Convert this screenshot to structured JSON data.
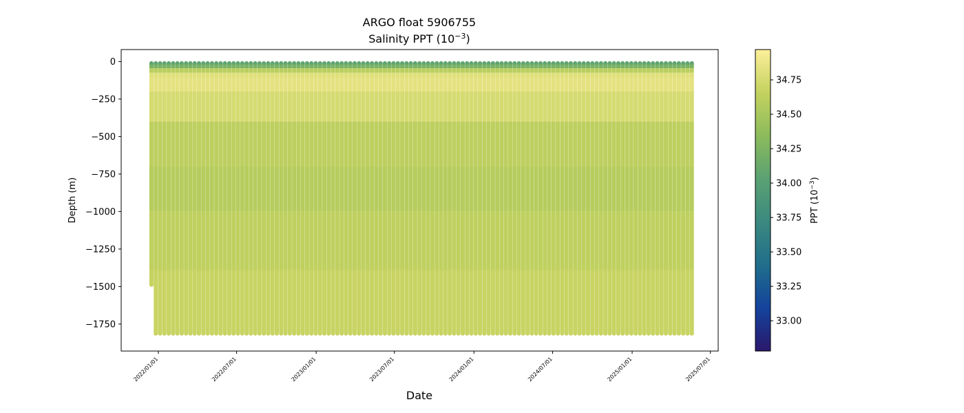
{
  "chart_data": {
    "type": "scatter",
    "title": "ARGO float 5906755",
    "subtitle_prefix": "Salinity PPT (10",
    "subtitle_exp": "−3",
    "subtitle_suffix": ")",
    "xlabel": "Date",
    "ylabel": "Depth (m)",
    "colorbar_label_prefix": "PPT (10",
    "colorbar_label_exp": "−3",
    "colorbar_label_suffix": ")",
    "colormap": "haline",
    "colormap_stops": [
      "#2a186c",
      "#14439c",
      "#206e8b",
      "#3b897f",
      "#5aa173",
      "#8cbb5c",
      "#c4d25f",
      "#fdef9a"
    ],
    "color_range": [
      32.78,
      34.97
    ],
    "xlim": [
      "2021-10-07",
      "2025-07-19"
    ],
    "ylim": [
      -1930,
      80
    ],
    "x_ticks": [
      "2022/01/01",
      "2022/07/01",
      "2023/01/01",
      "2023/07/01",
      "2024/01/01",
      "2024/07/01",
      "2025/01/01",
      "2025/07/01"
    ],
    "x_tick_dates": [
      "2022-01-01",
      "2022-07-01",
      "2023-01-01",
      "2023-07-01",
      "2024-01-01",
      "2024-07-01",
      "2025-01-01",
      "2025-07-01"
    ],
    "y_ticks": [
      0,
      -250,
      -500,
      -750,
      -1000,
      -1250,
      -1500,
      -1750
    ],
    "y_tick_labels": [
      "0",
      "−250",
      "−500",
      "−750",
      "−1000",
      "−1250",
      "−1500",
      "−1750"
    ],
    "colorbar_ticks": [
      33.0,
      33.25,
      33.5,
      33.75,
      34.0,
      34.25,
      34.5,
      34.75
    ],
    "colorbar_tick_labels": [
      "33.00",
      "33.25",
      "33.50",
      "33.75",
      "34.00",
      "34.25",
      "34.50",
      "34.75"
    ],
    "profiles": {
      "first_date": "2021-12-16",
      "last_date": "2025-05-20",
      "interval_days": 10,
      "first_profile_max_depth": -1500,
      "typical_max_depth": -1825
    },
    "salinity_profile": [
      {
        "depth": 0,
        "salinity": 34.0
      },
      {
        "depth": -30,
        "salinity": 34.2
      },
      {
        "depth": -60,
        "salinity": 34.6
      },
      {
        "depth": -100,
        "salinity": 34.85
      },
      {
        "depth": -200,
        "salinity": 34.82
      },
      {
        "depth": -400,
        "salinity": 34.68
      },
      {
        "depth": -700,
        "salinity": 34.56
      },
      {
        "depth": -1000,
        "salinity": 34.6
      },
      {
        "depth": -1400,
        "salinity": 34.66
      },
      {
        "depth": -1825,
        "salinity": 34.7
      }
    ]
  }
}
